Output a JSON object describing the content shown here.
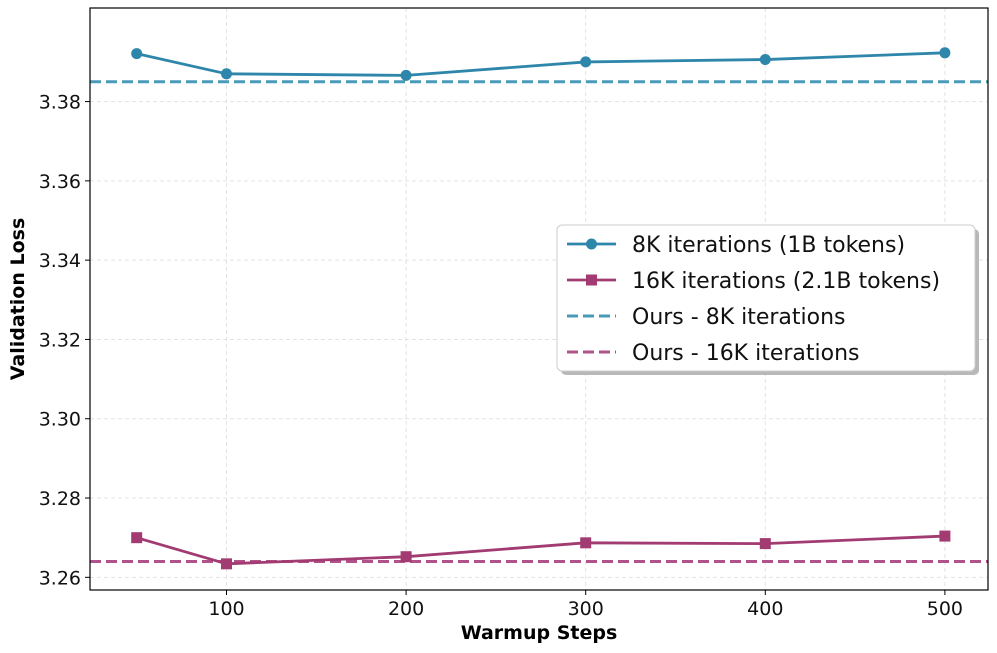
{
  "chart_data": {
    "type": "line",
    "title": "",
    "xlabel": "Warmup Steps",
    "ylabel": "Validation Loss",
    "xlim": [
      24,
      524
    ],
    "ylim": [
      3.2568,
      3.4036
    ],
    "xticks": [
      100,
      200,
      300,
      400,
      500
    ],
    "yticks": [
      3.26,
      3.28,
      3.3,
      3.32,
      3.34,
      3.36,
      3.38
    ],
    "ytick_labels": [
      "3.26",
      "3.28",
      "3.30",
      "3.32",
      "3.34",
      "3.36",
      "3.38"
    ],
    "grid": true,
    "legend_position": "center-right",
    "series": [
      {
        "name": "8K iterations (1B tokens)",
        "color": "#2e86ab",
        "marker": "circle",
        "style": "solid",
        "x": [
          50,
          100,
          200,
          300,
          400,
          500
        ],
        "y": [
          3.3921,
          3.387,
          3.3866,
          3.39,
          3.3906,
          3.3923
        ]
      },
      {
        "name": "16K iterations (2.1B tokens)",
        "color": "#a23b72",
        "marker": "square",
        "style": "solid",
        "x": [
          50,
          100,
          200,
          300,
          400,
          500
        ],
        "y": [
          3.27,
          3.2634,
          3.2652,
          3.2687,
          3.2685,
          3.2704
        ]
      }
    ],
    "reference_lines": [
      {
        "name": "Ours - 8K iterations",
        "color": "#4a9bb8",
        "style": "dashed",
        "y": 3.385
      },
      {
        "name": "Ours - 16K iterations",
        "color": "#b0538a",
        "style": "dashed",
        "y": 3.264
      }
    ]
  }
}
